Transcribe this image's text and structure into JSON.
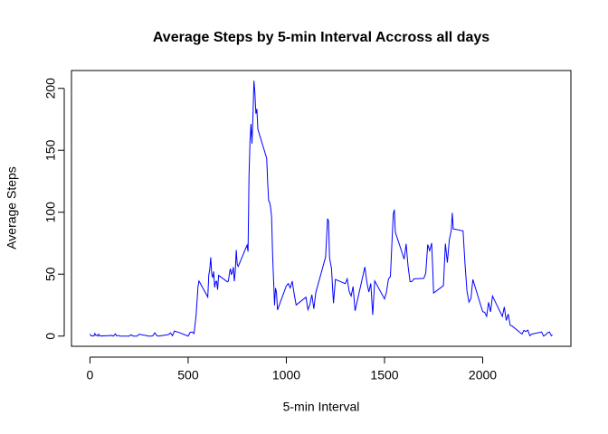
{
  "chart_data": {
    "type": "line",
    "title": "Average Steps by 5-min Interval Accross all days",
    "x_label": "5-min Interval",
    "y_label": "Average Steps",
    "x": [
      0,
      5,
      10,
      15,
      20,
      25,
      30,
      35,
      40,
      45,
      50,
      55,
      100,
      105,
      110,
      115,
      120,
      125,
      130,
      135,
      140,
      145,
      150,
      155,
      200,
      210,
      220,
      230,
      240,
      250,
      300,
      310,
      320,
      330,
      340,
      350,
      400,
      410,
      420,
      430,
      440,
      450,
      500,
      510,
      520,
      530,
      540,
      550,
      555,
      600,
      605,
      610,
      615,
      620,
      625,
      630,
      635,
      640,
      645,
      650,
      655,
      700,
      705,
      710,
      715,
      720,
      725,
      730,
      735,
      740,
      745,
      750,
      755,
      800,
      805,
      810,
      815,
      820,
      825,
      830,
      835,
      840,
      845,
      850,
      855,
      900,
      905,
      910,
      915,
      920,
      925,
      930,
      935,
      940,
      945,
      950,
      955,
      1000,
      1010,
      1020,
      1030,
      1040,
      1050,
      1100,
      1110,
      1120,
      1130,
      1140,
      1150,
      1200,
      1210,
      1215,
      1220,
      1230,
      1240,
      1250,
      1300,
      1310,
      1320,
      1330,
      1340,
      1350,
      1400,
      1410,
      1420,
      1430,
      1440,
      1450,
      1500,
      1510,
      1520,
      1530,
      1540,
      1545,
      1550,
      1555,
      1600,
      1610,
      1620,
      1630,
      1640,
      1650,
      1700,
      1710,
      1720,
      1730,
      1740,
      1745,
      1750,
      1800,
      1810,
      1820,
      1830,
      1840,
      1845,
      1850,
      1900,
      1910,
      1920,
      1930,
      1940,
      1950,
      2000,
      2010,
      2020,
      2030,
      2040,
      2050,
      2100,
      2110,
      2120,
      2130,
      2140,
      2150,
      2200,
      2210,
      2220,
      2230,
      2240,
      2250,
      2300,
      2310,
      2320,
      2330,
      2340,
      2350,
      2355
    ],
    "series": [
      {
        "name": "Average Steps",
        "color": "#0000ff",
        "values": [
          1.7,
          0.3,
          0.1,
          0.2,
          0.1,
          2.1,
          0.5,
          0.9,
          0,
          1.5,
          0.3,
          0.1,
          0.3,
          0.7,
          0.2,
          0.3,
          0,
          1.1,
          1.8,
          0.2,
          0.2,
          0.4,
          0.3,
          0,
          0,
          1.1,
          0,
          0,
          0,
          1.5,
          0,
          0,
          0.2,
          2.6,
          0.5,
          0,
          1.2,
          2.6,
          0.3,
          4.1,
          3.5,
          3.1,
          0,
          3.0,
          3.3,
          2.1,
          16,
          39.5,
          44.5,
          31.5,
          49.3,
          53.8,
          63.5,
          50,
          47.1,
          52.2,
          39.3,
          44,
          44.2,
          37.4,
          49,
          43.8,
          44.4,
          50.5,
          54.5,
          49.9,
          51,
          55.7,
          44.3,
          52.3,
          69.5,
          57.8,
          56.2,
          73.4,
          68.2,
          129.4,
          157.5,
          171.2,
          155.4,
          177.3,
          206.2,
          195.9,
          179.6,
          183.4,
          167.0,
          143.5,
          124.0,
          109.1,
          108.1,
          103.7,
          96.0,
          66.2,
          45.2,
          24.8,
          38.8,
          35.0,
          21.1,
          40.6,
          42.4,
          38.9,
          44.3,
          34.0,
          25.1,
          31.4,
          21.3,
          25.5,
          33.4,
          22.0,
          35.1,
          63.9,
          94.8,
          92.8,
          63.4,
          54.5,
          26.5,
          45.7,
          42.3,
          46.2,
          36.0,
          32.4,
          40.0,
          20.4,
          55.8,
          43.6,
          35.5,
          42.5,
          17.1,
          44.6,
          30.0,
          35.5,
          46.0,
          48.1,
          82.9,
          98.7,
          102.1,
          84.0,
          62.1,
          74.5,
          56.4,
          43.9,
          44.1,
          46.2,
          46.6,
          50.7,
          73.9,
          68.9,
          75.1,
          56.5,
          34.8,
          40.7,
          74.7,
          59.3,
          77.7,
          85.3,
          99.5,
          86.6,
          84.9,
          58.0,
          36.1,
          27.4,
          30.2,
          45.7,
          19.6,
          19.3,
          15.9,
          27.3,
          19.5,
          32.3,
          15.9,
          23.5,
          12.6,
          17.8,
          8.7,
          8.1,
          1.6,
          4.6,
          3.7,
          4.8,
          0.3,
          1.6,
          3.3,
          0,
          1.0,
          2.6,
          3.3,
          0.2,
          1.1
        ]
      }
    ],
    "xlim": [
      -94.2,
      2449.2
    ],
    "ylim": [
      -8.25,
      214.4
    ],
    "xticks": [
      0,
      500,
      1000,
      1500,
      2000
    ],
    "yticks": [
      0,
      50,
      100,
      150,
      200
    ]
  }
}
